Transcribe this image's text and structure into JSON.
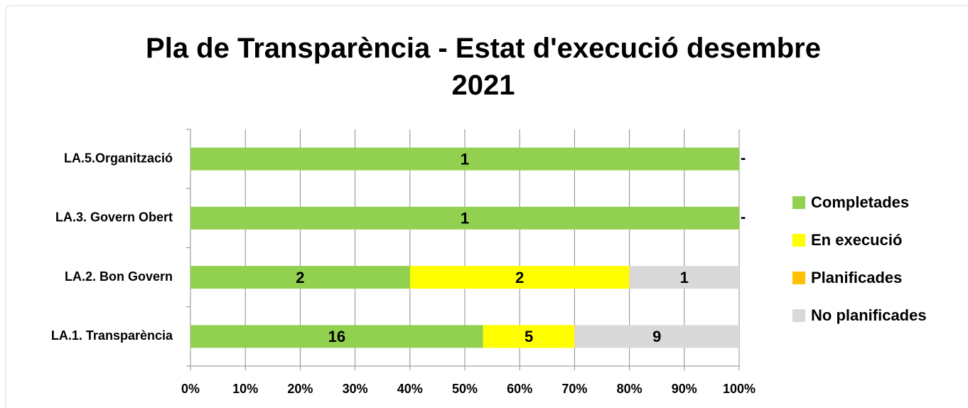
{
  "chart_data": {
    "type": "bar",
    "orientation": "horizontal",
    "stacking": "percent",
    "title": "Pla de Transparència - Estat d'execució desembre 2021",
    "categories": [
      "LA.1. Transparència",
      "LA.2. Bon Govern",
      "LA.3. Govern Obert",
      "LA.5.Organització"
    ],
    "series": [
      {
        "name": "Completades",
        "color": "#92d050",
        "values": [
          16,
          2,
          1,
          1
        ]
      },
      {
        "name": "En execució",
        "color": "#ffff00",
        "values": [
          5,
          2,
          0,
          0
        ]
      },
      {
        "name": "Planificades",
        "color": "#ffc000",
        "values": [
          0,
          0,
          0,
          0
        ]
      },
      {
        "name": "No planificades",
        "color": "#d9d9d9",
        "values": [
          9,
          1,
          0,
          0
        ],
        "value_labels": [
          "9",
          "1",
          "-",
          "-"
        ]
      }
    ],
    "xlim": [
      0,
      100
    ],
    "xticks": [
      {
        "value": 0,
        "label": "0%"
      },
      {
        "value": 10,
        "label": "10%"
      },
      {
        "value": 20,
        "label": "20%"
      },
      {
        "value": 30,
        "label": "30%"
      },
      {
        "value": 40,
        "label": "40%"
      },
      {
        "value": 50,
        "label": "50%"
      },
      {
        "value": 60,
        "label": "60%"
      },
      {
        "value": 70,
        "label": "70%"
      },
      {
        "value": 80,
        "label": "80%"
      },
      {
        "value": 90,
        "label": "90%"
      },
      {
        "value": 100,
        "label": "100%"
      }
    ],
    "grid": true,
    "legend": "right"
  }
}
